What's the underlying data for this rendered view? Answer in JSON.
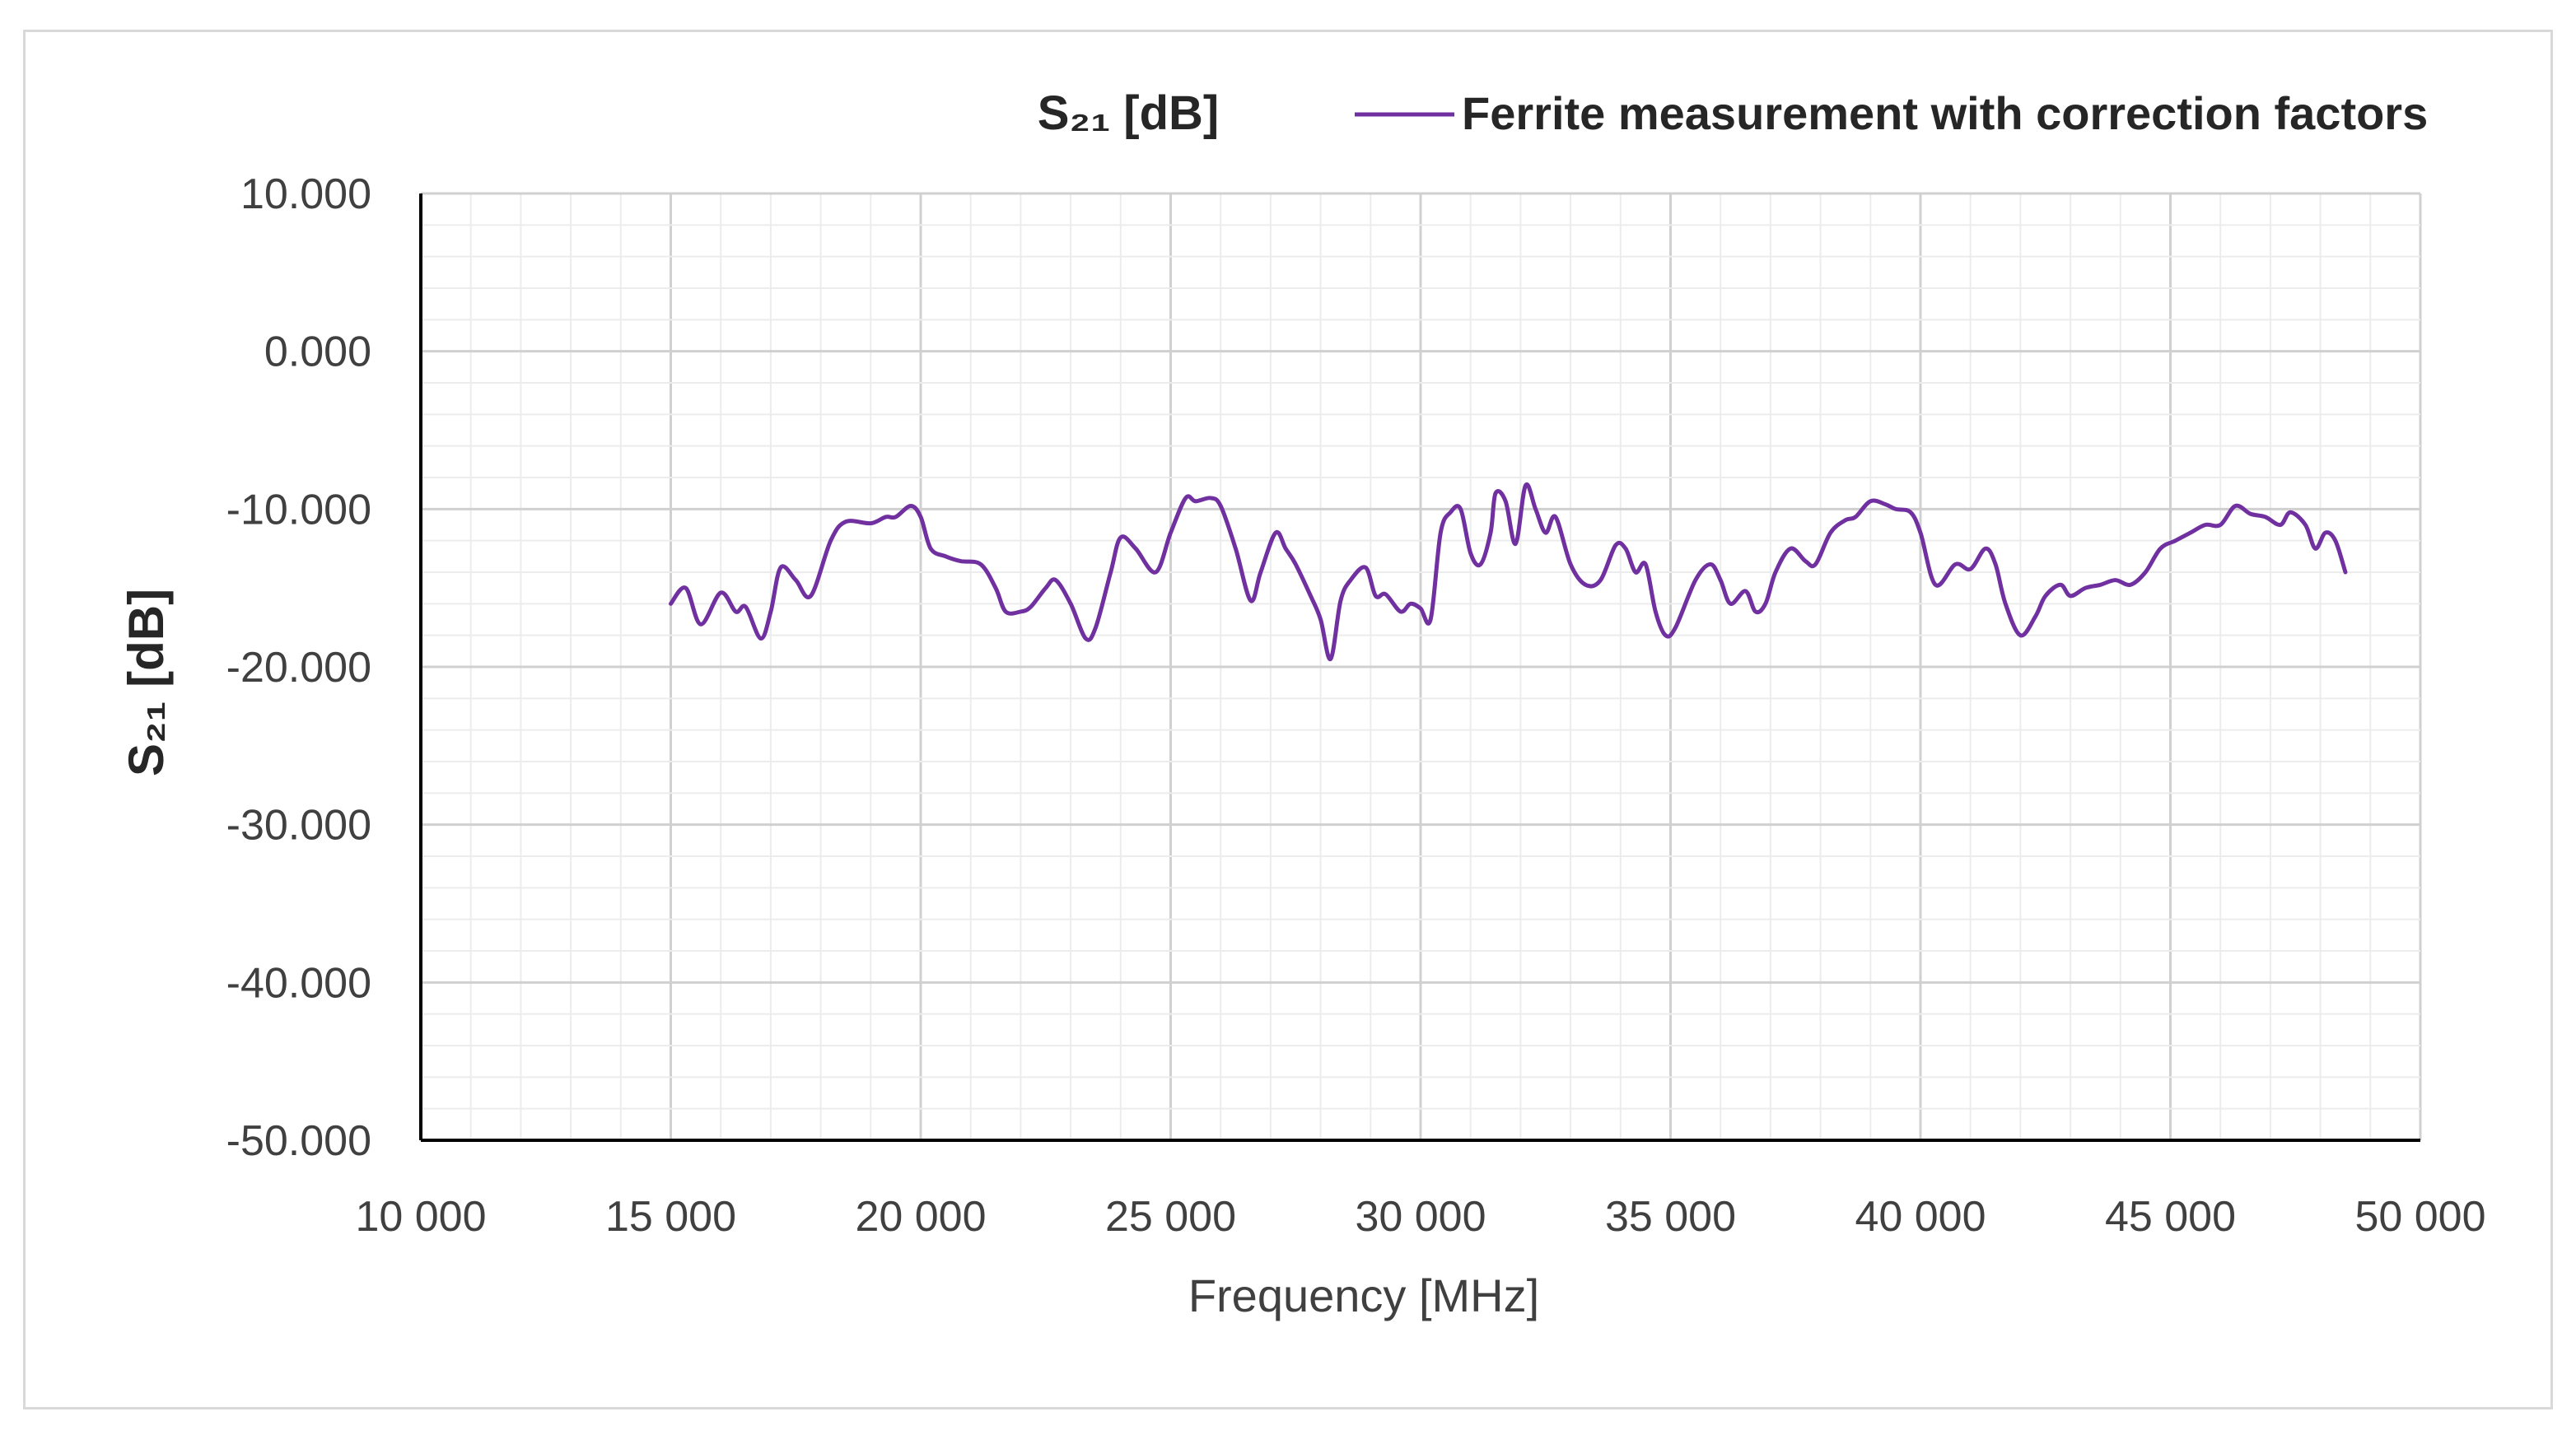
{
  "chart_data": {
    "type": "line",
    "title": "S₂₁ [dB]",
    "xlabel": "Frequency [MHz]",
    "ylabel": "S₂₁ [dB]",
    "xlim": [
      10000,
      50000
    ],
    "ylim": [
      -50,
      10
    ],
    "x_major_step": 5000,
    "x_minor_step": 1000,
    "y_major_step": 10,
    "y_minor_step": 2,
    "x_tick_labels": [
      "10 000",
      "15 000",
      "20 000",
      "25 000",
      "30 000",
      "35 000",
      "40 000",
      "45 000",
      "50 000"
    ],
    "y_tick_labels": [
      "10.000",
      "0.000",
      "-10.000",
      "-20.000",
      "-30.000",
      "-40.000",
      "-50.000"
    ],
    "grid": true,
    "legend_position": "top-right",
    "series": [
      {
        "name": "Ferrite measurement with correction factors",
        "color": "#7030a0",
        "points": [
          [
            15000,
            -16.0
          ],
          [
            15300,
            -15.0
          ],
          [
            15600,
            -17.3
          ],
          [
            16000,
            -15.3
          ],
          [
            16300,
            -16.5
          ],
          [
            16500,
            -16.2
          ],
          [
            16800,
            -18.2
          ],
          [
            17000,
            -16.5
          ],
          [
            17200,
            -13.7
          ],
          [
            17500,
            -14.5
          ],
          [
            17800,
            -15.5
          ],
          [
            18200,
            -12.0
          ],
          [
            18500,
            -10.8
          ],
          [
            19000,
            -10.9
          ],
          [
            19300,
            -10.5
          ],
          [
            19500,
            -10.5
          ],
          [
            19800,
            -9.8
          ],
          [
            20000,
            -10.5
          ],
          [
            20200,
            -12.5
          ],
          [
            20500,
            -13.0
          ],
          [
            20800,
            -13.3
          ],
          [
            21200,
            -13.5
          ],
          [
            21500,
            -15.0
          ],
          [
            21700,
            -16.5
          ],
          [
            22000,
            -16.5
          ],
          [
            22200,
            -16.2
          ],
          [
            22500,
            -15.0
          ],
          [
            22700,
            -14.5
          ],
          [
            23000,
            -16.0
          ],
          [
            23300,
            -18.2
          ],
          [
            23500,
            -17.5
          ],
          [
            23800,
            -14.0
          ],
          [
            24000,
            -11.8
          ],
          [
            24300,
            -12.5
          ],
          [
            24700,
            -14.0
          ],
          [
            25000,
            -11.5
          ],
          [
            25300,
            -9.3
          ],
          [
            25500,
            -9.5
          ],
          [
            25800,
            -9.3
          ],
          [
            26000,
            -9.8
          ],
          [
            26300,
            -12.5
          ],
          [
            26600,
            -15.8
          ],
          [
            26800,
            -14.0
          ],
          [
            27100,
            -11.5
          ],
          [
            27300,
            -12.5
          ],
          [
            27500,
            -13.5
          ],
          [
            27800,
            -15.5
          ],
          [
            28000,
            -17.0
          ],
          [
            28200,
            -19.5
          ],
          [
            28400,
            -15.8
          ],
          [
            28600,
            -14.5
          ],
          [
            28900,
            -13.7
          ],
          [
            29100,
            -15.5
          ],
          [
            29300,
            -15.4
          ],
          [
            29600,
            -16.5
          ],
          [
            29800,
            -16.0
          ],
          [
            30000,
            -16.3
          ],
          [
            30200,
            -17.0
          ],
          [
            30400,
            -11.5
          ],
          [
            30600,
            -10.2
          ],
          [
            30800,
            -10.0
          ],
          [
            31000,
            -12.8
          ],
          [
            31200,
            -13.5
          ],
          [
            31400,
            -11.5
          ],
          [
            31500,
            -9.0
          ],
          [
            31700,
            -9.5
          ],
          [
            31900,
            -12.2
          ],
          [
            32100,
            -8.5
          ],
          [
            32300,
            -10.0
          ],
          [
            32500,
            -11.5
          ],
          [
            32700,
            -10.5
          ],
          [
            33000,
            -13.5
          ],
          [
            33300,
            -14.8
          ],
          [
            33600,
            -14.5
          ],
          [
            33900,
            -12.3
          ],
          [
            34100,
            -12.5
          ],
          [
            34300,
            -14.0
          ],
          [
            34500,
            -13.5
          ],
          [
            34700,
            -16.5
          ],
          [
            34900,
            -18.0
          ],
          [
            35100,
            -17.5
          ],
          [
            35500,
            -14.5
          ],
          [
            35800,
            -13.5
          ],
          [
            36000,
            -14.5
          ],
          [
            36200,
            -16.0
          ],
          [
            36500,
            -15.2
          ],
          [
            36700,
            -16.5
          ],
          [
            36900,
            -16.0
          ],
          [
            37100,
            -14.0
          ],
          [
            37400,
            -12.5
          ],
          [
            37700,
            -13.3
          ],
          [
            37900,
            -13.5
          ],
          [
            38200,
            -11.5
          ],
          [
            38500,
            -10.7
          ],
          [
            38700,
            -10.5
          ],
          [
            39000,
            -9.5
          ],
          [
            39300,
            -9.7
          ],
          [
            39500,
            -10.0
          ],
          [
            39800,
            -10.2
          ],
          [
            40000,
            -11.5
          ],
          [
            40300,
            -14.8
          ],
          [
            40700,
            -13.5
          ],
          [
            41000,
            -13.8
          ],
          [
            41300,
            -12.5
          ],
          [
            41500,
            -13.5
          ],
          [
            41700,
            -16.0
          ],
          [
            42000,
            -18.0
          ],
          [
            42300,
            -16.8
          ],
          [
            42500,
            -15.5
          ],
          [
            42800,
            -14.8
          ],
          [
            43000,
            -15.5
          ],
          [
            43300,
            -15.0
          ],
          [
            43600,
            -14.8
          ],
          [
            43900,
            -14.5
          ],
          [
            44200,
            -14.8
          ],
          [
            44500,
            -14.0
          ],
          [
            44800,
            -12.5
          ],
          [
            45100,
            -12.0
          ],
          [
            45400,
            -11.5
          ],
          [
            45700,
            -11.0
          ],
          [
            46000,
            -11.0
          ],
          [
            46300,
            -9.8
          ],
          [
            46600,
            -10.3
          ],
          [
            46900,
            -10.5
          ],
          [
            47200,
            -11.0
          ],
          [
            47400,
            -10.2
          ],
          [
            47700,
            -11.0
          ],
          [
            47900,
            -12.5
          ],
          [
            48100,
            -11.5
          ],
          [
            48300,
            -12.0
          ],
          [
            48500,
            -14.0
          ]
        ]
      }
    ]
  }
}
